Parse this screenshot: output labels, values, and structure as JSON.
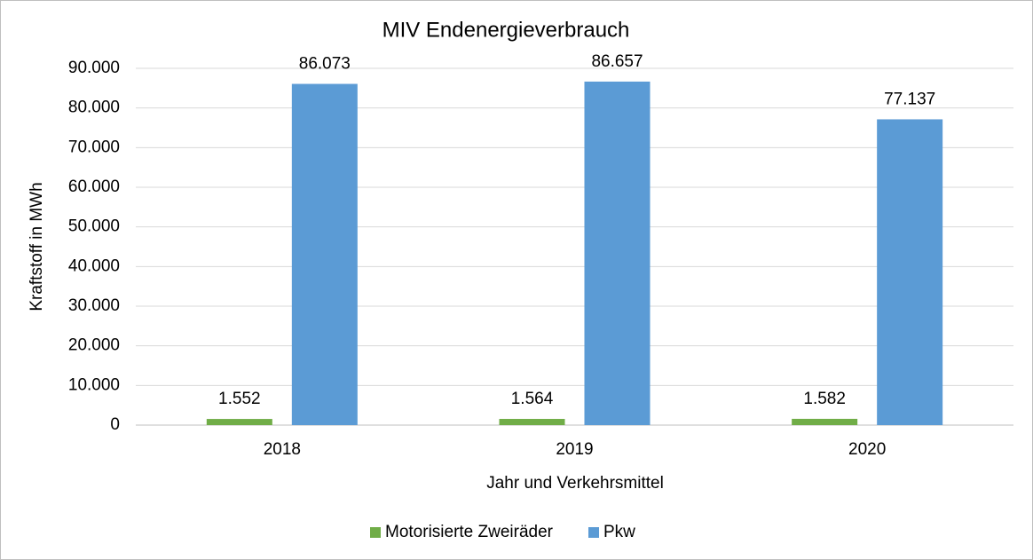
{
  "chart_data": {
    "type": "bar",
    "title": "MIV Endenergieverbrauch",
    "x_label": "Jahr und Verkehrsmittel",
    "y_label": "Kraftstoff in MWh",
    "categories": [
      "2018",
      "2019",
      "2020"
    ],
    "series": [
      {
        "name": "Motorisierte Zweiräder",
        "color": "#70ad47",
        "values": [
          1552,
          1564,
          1582
        ],
        "value_labels": [
          "1.552",
          "1.564",
          "1.582"
        ]
      },
      {
        "name": "Pkw",
        "color": "#5b9bd5",
        "values": [
          86073,
          86657,
          77137
        ],
        "value_labels": [
          "86.073",
          "86.657",
          "77.137"
        ]
      }
    ],
    "ylim": [
      0,
      90000
    ],
    "yticks": [
      0,
      {
        "value": 10000,
        "label": "10.000"
      },
      {
        "value": 20000,
        "label": "20.000"
      },
      {
        "value": 30000,
        "label": "30.000"
      },
      {
        "value": 40000,
        "label": "40.000"
      },
      {
        "value": 50000,
        "label": "50.000"
      },
      {
        "value": 60000,
        "label": "60.000"
      },
      {
        "value": 70000,
        "label": "70.000"
      },
      {
        "value": 80000,
        "label": "80.000"
      },
      {
        "value": 90000,
        "label": "90.000"
      }
    ],
    "grid": true,
    "legend": "bottom"
  }
}
